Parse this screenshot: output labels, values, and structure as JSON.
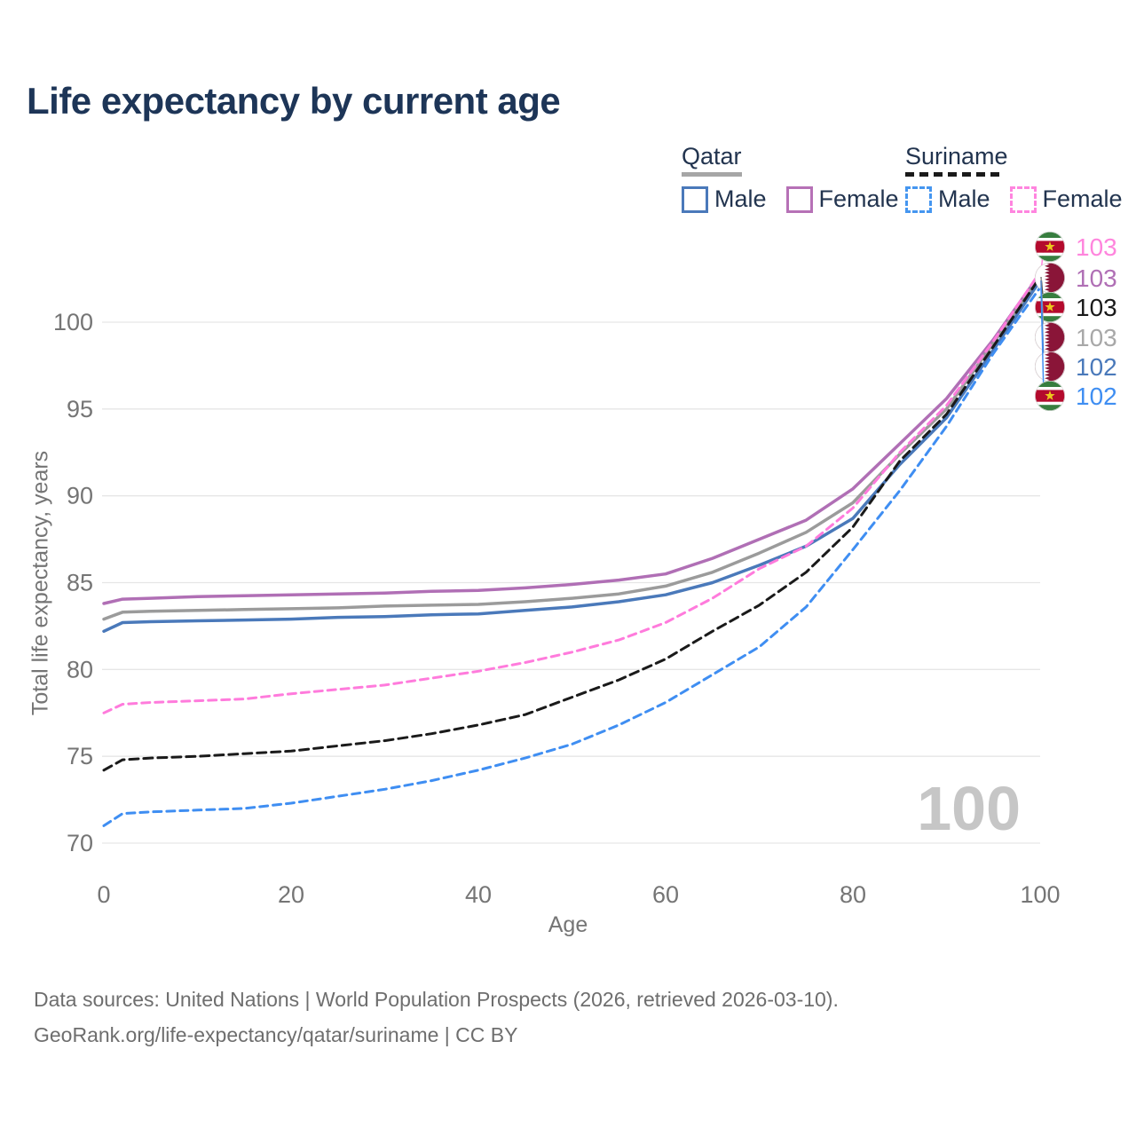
{
  "title": "Life expectancy by current age",
  "legend": {
    "groups": [
      {
        "label": "Qatar",
        "line_style": "solid",
        "underline_color": "#a6a6a6",
        "items": [
          {
            "label": "Male",
            "color": "#4a79ba"
          },
          {
            "label": "Female",
            "color": "#b671b6"
          }
        ]
      },
      {
        "label": "Suriname",
        "line_style": "dashed",
        "underline_color": "#1a1a1a",
        "items": [
          {
            "label": "Male",
            "color": "#4596f0"
          },
          {
            "label": "Female",
            "color": "#ff85df"
          }
        ]
      }
    ]
  },
  "chart_data": {
    "type": "line",
    "title": "Life expectancy by current age",
    "xlabel": "Age",
    "ylabel": "Total life expectancy, years",
    "xlim": [
      0,
      100
    ],
    "ylim": [
      70,
      100
    ],
    "x_ticks": [
      0,
      20,
      40,
      60,
      80,
      100
    ],
    "y_ticks": [
      70,
      75,
      80,
      85,
      90,
      95,
      100
    ],
    "grid": true,
    "legend_position": "top-right",
    "ages": [
      0,
      2,
      5,
      10,
      15,
      20,
      25,
      30,
      35,
      40,
      45,
      50,
      55,
      60,
      65,
      70,
      75,
      80,
      85,
      90,
      95,
      100
    ],
    "series": [
      {
        "id": "qatar-female",
        "name": "Qatar Female",
        "country": "Qatar",
        "sex": "Female",
        "color": "#b06fb5",
        "line_style": "solid",
        "values": [
          83.8,
          84.05,
          84.1,
          84.2,
          84.25,
          84.3,
          84.35,
          84.4,
          84.5,
          84.55,
          84.7,
          84.9,
          85.15,
          85.5,
          86.4,
          87.5,
          88.6,
          90.4,
          93.0,
          95.6,
          99.0,
          102.8
        ]
      },
      {
        "id": "qatar-all",
        "name": "Qatar Both sexes",
        "country": "Qatar",
        "sex": "Both",
        "color": "#9b9b9b",
        "line_style": "solid",
        "values": [
          82.9,
          83.3,
          83.35,
          83.4,
          83.45,
          83.5,
          83.55,
          83.65,
          83.7,
          83.75,
          83.9,
          84.1,
          84.35,
          84.8,
          85.6,
          86.7,
          87.9,
          89.6,
          92.4,
          95.0,
          98.8,
          102.6
        ]
      },
      {
        "id": "qatar-male",
        "name": "Qatar Male",
        "country": "Qatar",
        "sex": "Male",
        "color": "#4a79ba",
        "line_style": "solid",
        "values": [
          82.2,
          82.7,
          82.75,
          82.8,
          82.85,
          82.9,
          83.0,
          83.05,
          83.15,
          83.2,
          83.4,
          83.6,
          83.9,
          84.3,
          85.0,
          86.0,
          87.1,
          88.7,
          91.8,
          94.5,
          98.4,
          102.4
        ]
      },
      {
        "id": "suriname-female",
        "name": "Suriname Female",
        "country": "Suriname",
        "sex": "Female",
        "color": "#ff7bdc",
        "line_style": "dashed",
        "values": [
          77.5,
          78.0,
          78.1,
          78.2,
          78.3,
          78.6,
          78.85,
          79.1,
          79.5,
          79.9,
          80.4,
          81.0,
          81.7,
          82.7,
          84.1,
          85.8,
          87.1,
          89.3,
          92.5,
          95.2,
          98.9,
          102.9
        ]
      },
      {
        "id": "suriname-all",
        "name": "Suriname Both sexes",
        "country": "Suriname",
        "sex": "Both",
        "color": "#1a1a1a",
        "line_style": "dashed",
        "values": [
          74.2,
          74.8,
          74.9,
          75.0,
          75.15,
          75.3,
          75.6,
          75.9,
          76.3,
          76.8,
          77.4,
          78.4,
          79.4,
          80.6,
          82.2,
          83.7,
          85.6,
          88.2,
          92.0,
          94.7,
          98.6,
          102.6
        ]
      },
      {
        "id": "suriname-male",
        "name": "Suriname Male",
        "country": "Suriname",
        "sex": "Male",
        "color": "#3f8ef2",
        "line_style": "dashed",
        "values": [
          71.0,
          71.7,
          71.8,
          71.9,
          72.0,
          72.3,
          72.7,
          73.1,
          73.6,
          74.2,
          74.9,
          75.7,
          76.8,
          78.1,
          79.7,
          81.3,
          83.6,
          86.9,
          90.3,
          94.0,
          98.2,
          102.0
        ]
      }
    ],
    "end_labels": [
      {
        "series": "suriname-female",
        "value": "103",
        "flag": "suriname",
        "color": "#ff85dd"
      },
      {
        "series": "qatar-female",
        "value": "103",
        "flag": "qatar",
        "color": "#b06fb5"
      },
      {
        "series": "suriname-all",
        "value": "103",
        "flag": "suriname",
        "color": "#1a1a1a"
      },
      {
        "series": "qatar-all",
        "value": "103",
        "flag": "qatar",
        "color": "#a8a8a8"
      },
      {
        "series": "qatar-male",
        "value": "102",
        "flag": "qatar",
        "color": "#4a79ba"
      },
      {
        "series": "suriname-male",
        "value": "102",
        "flag": "suriname",
        "color": "#3f8ef2"
      }
    ]
  },
  "watermark": "100",
  "footer": {
    "line1": "Data sources: United Nations | World Population Prospects (2026, retrieved 2026-03-10).",
    "line2": "GeoRank.org/life-expectancy/qatar/suriname | CC BY"
  }
}
